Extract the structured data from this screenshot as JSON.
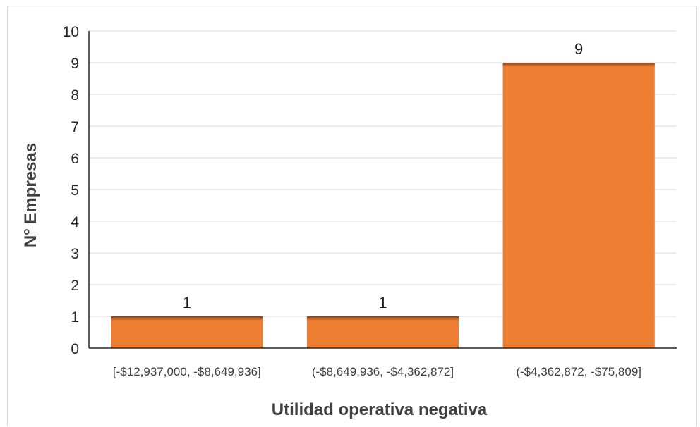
{
  "chart_data": {
    "type": "bar",
    "categories": [
      "[-$12,937,000, -$8,649,936]",
      "(-$8,649,936, -$4,362,872]",
      "(-$4,362,872, -$75,809]"
    ],
    "values": [
      1,
      1,
      9
    ],
    "data_labels": [
      "1",
      "1",
      "9"
    ],
    "title": "",
    "xlabel": "Utilidad operativa negativa",
    "ylabel": "N° Empresas",
    "ylim": [
      0,
      10
    ],
    "yticks": [
      "0",
      "1",
      "2",
      "3",
      "4",
      "5",
      "6",
      "7",
      "8",
      "9",
      "10"
    ],
    "grid": true,
    "legend": "none",
    "bar_color": "#ED7D31",
    "bar_top_color": "#9C4A14"
  }
}
